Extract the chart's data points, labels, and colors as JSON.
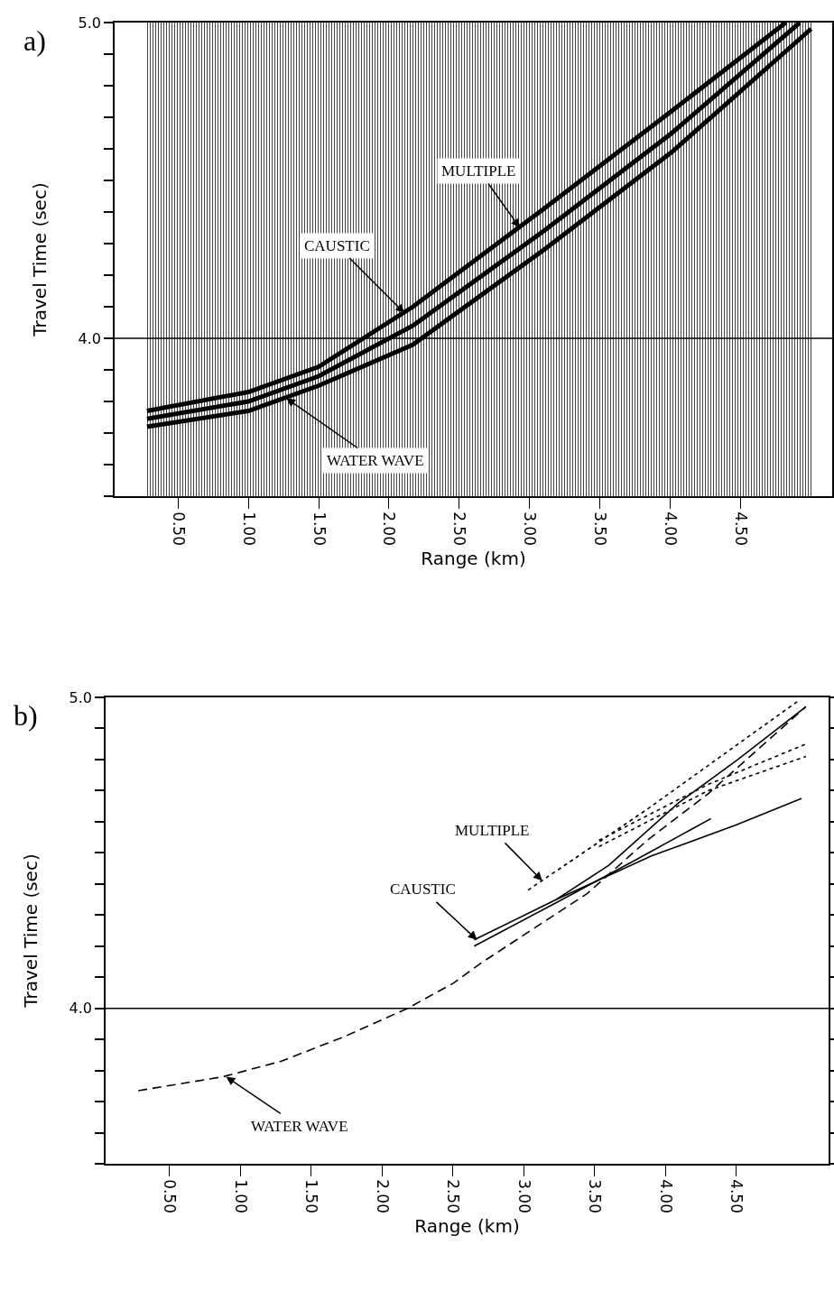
{
  "chart_data": [
    {
      "type": "line",
      "xlabel": "Range (km)",
      "ylabel": "Travel Time (sec)",
      "xlim": [
        0.05,
        5.15
      ],
      "ylim": [
        3.5,
        5.0
      ],
      "xticks": [
        {
          "value": 0.5,
          "label": "0.50"
        },
        {
          "value": 1.0,
          "label": "1.00"
        },
        {
          "value": 1.5,
          "label": "1.50"
        },
        {
          "value": 2.0,
          "label": "2.00"
        },
        {
          "value": 2.5,
          "label": "2.50"
        },
        {
          "value": 3.0,
          "label": "3.00"
        },
        {
          "value": 3.5,
          "label": "3.50"
        },
        {
          "value": 4.0,
          "label": "4.00"
        },
        {
          "value": 4.5,
          "label": "4.50"
        }
      ],
      "yticks": [
        {
          "value": 3.5,
          "label": null
        },
        {
          "value": 3.6,
          "label": null
        },
        {
          "value": 3.7,
          "label": null
        },
        {
          "value": 3.8,
          "label": null
        },
        {
          "value": 3.9,
          "label": null
        },
        {
          "value": 4.0,
          "label": "4.0"
        },
        {
          "value": 4.1,
          "label": null
        },
        {
          "value": 4.2,
          "label": null
        },
        {
          "value": 4.3,
          "label": null
        },
        {
          "value": 4.4,
          "label": null
        },
        {
          "value": 4.5,
          "label": null
        },
        {
          "value": 4.6,
          "label": null
        },
        {
          "value": 4.7,
          "label": null
        },
        {
          "value": 4.8,
          "label": null
        },
        {
          "value": 4.9,
          "label": null
        },
        {
          "value": 5.0,
          "label": "5.0"
        }
      ],
      "grid": false,
      "marker": "none",
      "ref_lines": [
        {
          "axis": "y",
          "value": 4.0,
          "color": "#000000"
        }
      ],
      "series": [
        {
          "color": "#000000",
          "line_style": "solid",
          "x": [
            0.28,
            1.0,
            1.5,
            2.17,
            3.1,
            4.01,
            4.82
          ],
          "values": [
            3.77,
            3.83,
            3.91,
            4.1,
            4.41,
            4.72,
            5.0
          ]
        },
        {
          "color": "#000000",
          "line_style": "solid",
          "x": [
            0.28,
            1.0,
            1.5,
            2.17,
            3.1,
            4.01,
            4.92
          ],
          "values": [
            3.745,
            3.8,
            3.88,
            4.04,
            4.34,
            4.65,
            5.0
          ]
        },
        {
          "color": "#000000",
          "line_style": "solid",
          "x": [
            0.28,
            1.0,
            1.5,
            2.17,
            3.1,
            4.01,
            5.0
          ],
          "values": [
            3.72,
            3.77,
            3.85,
            3.98,
            4.28,
            4.59,
            4.98
          ]
        }
      ],
      "annotations": [
        "a)",
        {
          "text": "MULTIPLE",
          "x": 2.93,
          "y": 4.35
        },
        {
          "text": "CAUSTIC",
          "x": 2.11,
          "y": 4.08
        },
        {
          "text": "WATER WAVE",
          "x": 1.27,
          "y": 3.81
        }
      ]
    },
    {
      "type": "line",
      "xlabel": "Range (km)",
      "ylabel": "Travel Time (sec)",
      "xlim": [
        0.05,
        5.15
      ],
      "ylim": [
        3.5,
        5.0
      ],
      "xticks": [
        {
          "value": 0.5,
          "label": "0.50"
        },
        {
          "value": 1.0,
          "label": "1.00"
        },
        {
          "value": 1.5,
          "label": "1.50"
        },
        {
          "value": 2.0,
          "label": "2.00"
        },
        {
          "value": 2.5,
          "label": "2.50"
        },
        {
          "value": 3.0,
          "label": "3.00"
        },
        {
          "value": 3.5,
          "label": "3.50"
        },
        {
          "value": 4.0,
          "label": "4.00"
        },
        {
          "value": 4.5,
          "label": "4.50"
        }
      ],
      "yticks": [
        {
          "value": 3.5,
          "label": null
        },
        {
          "value": 3.6,
          "label": null
        },
        {
          "value": 3.7,
          "label": null
        },
        {
          "value": 3.8,
          "label": null
        },
        {
          "value": 3.9,
          "label": null
        },
        {
          "value": 4.0,
          "label": "4.0"
        },
        {
          "value": 4.1,
          "label": null
        },
        {
          "value": 4.2,
          "label": null
        },
        {
          "value": 4.3,
          "label": null
        },
        {
          "value": 4.4,
          "label": null
        },
        {
          "value": 4.5,
          "label": null
        },
        {
          "value": 4.6,
          "label": null
        },
        {
          "value": 4.7,
          "label": null
        },
        {
          "value": 4.8,
          "label": null
        },
        {
          "value": 4.9,
          "label": null
        },
        {
          "value": 5.0,
          "label": "5.0"
        }
      ],
      "grid": false,
      "marker": "none",
      "ref_lines": [
        {
          "axis": "y",
          "value": 4.0,
          "color": "#000000"
        }
      ],
      "series": [
        {
          "color": "#000000",
          "line_style": "dashed",
          "x": [
            0.28,
            0.88,
            1.29,
            1.74,
            2.18,
            2.5,
            2.7,
            3.45,
            3.87,
            4.3,
            4.99
          ],
          "values": [
            3.735,
            3.78,
            3.83,
            3.91,
            4.0,
            4.08,
            4.146,
            4.37,
            4.54,
            4.69,
            4.97
          ]
        },
        {
          "color": "#000000",
          "line_style": "solid",
          "x": [
            2.65,
            3.23,
            3.6,
            4.09,
            4.51,
            4.99
          ],
          "values": [
            4.22,
            4.35,
            4.46,
            4.66,
            4.8,
            4.97
          ]
        },
        {
          "color": "#000000",
          "line_style": "solid",
          "x": [
            2.65,
            3.23,
            3.8,
            4.32
          ],
          "values": [
            4.2,
            4.34,
            4.48,
            4.61
          ]
        },
        {
          "color": "#000000",
          "line_style": "solid",
          "x": [
            3.23,
            3.9,
            4.5,
            4.96
          ],
          "values": [
            4.35,
            4.49,
            4.59,
            4.675
          ]
        },
        {
          "color": "#000000",
          "line_style": "dotted",
          "x": [
            3.03,
            3.87,
            4.94
          ],
          "values": [
            4.38,
            4.64,
            4.99
          ]
        },
        {
          "color": "#000000",
          "line_style": "dotted",
          "x": [
            3.53,
            4.3,
            4.99
          ],
          "values": [
            4.54,
            4.72,
            4.85
          ]
        },
        {
          "color": "#000000",
          "line_style": "dotted",
          "x": [
            3.53,
            4.3,
            4.99
          ],
          "values": [
            4.52,
            4.7,
            4.81
          ]
        }
      ],
      "annotations": [
        "b)",
        {
          "text": "MULTIPLE",
          "x": 3.13,
          "y": 4.41
        },
        {
          "text": "CAUSTIC",
          "x": 2.67,
          "y": 4.22
        },
        {
          "text": "WATER WAVE",
          "x": 0.9,
          "y": 3.78
        }
      ]
    }
  ]
}
